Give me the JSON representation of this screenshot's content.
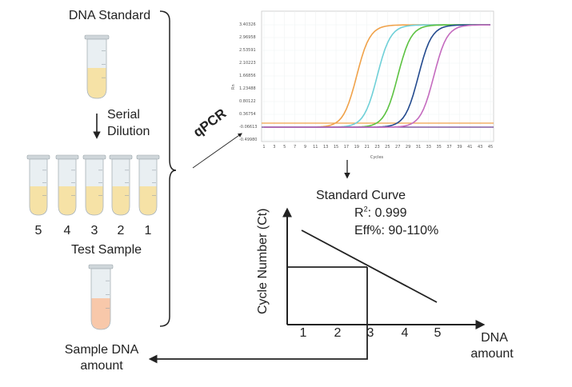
{
  "left": {
    "standard_label": "DNA Standard",
    "dilution_label_1": "Serial",
    "dilution_label_2": "Dilution",
    "dilution_numbers": [
      "5",
      "4",
      "3",
      "2",
      "1"
    ],
    "test_label": "Test Sample",
    "result_label_1": "Sample DNA",
    "result_label_2": "amount"
  },
  "qpcr_label": "qPCR",
  "colors": {
    "standard_liquid": "#f6e2a6",
    "sample_liquid": "#f8c8aa",
    "orange": "#f0a24a",
    "cyan": "#6fd0d8",
    "green": "#5cc241",
    "navy": "#234a8e",
    "magenta": "#c46bbf",
    "threshold": "#f0a24a",
    "baseline": "#6a3f8f"
  },
  "amplification_plot": {
    "ylabel": "Rn",
    "xlabel": "Cycles",
    "y_ticks": [
      "3.40326",
      "2.96958",
      "2.53591",
      "2.10223",
      "1.66856",
      "1.23488",
      "0.80122",
      "0.36754",
      "-0.06613",
      "-0.49980"
    ],
    "x_ticks": [
      "1",
      "3",
      "5",
      "7",
      "9",
      "11",
      "13",
      "15",
      "17",
      "19",
      "21",
      "23",
      "25",
      "27",
      "29",
      "31",
      "33",
      "35",
      "37",
      "39",
      "41",
      "43",
      "45"
    ],
    "curve_midpoints": [
      19,
      23,
      27,
      31,
      34
    ],
    "baseline_rn": -0.07,
    "plateau_rn": 3.4
  },
  "standard_curve": {
    "title": "Standard Curve",
    "r2_label": "R",
    "r2_sup": "2",
    "r2_value": ": 0.999",
    "eff": "Eff%: 90-110%",
    "ylabel": "Cycle Number (Ct)",
    "xlabel_1": "DNA",
    "xlabel_2": "amount",
    "x_ticks": [
      "1",
      "2",
      "3",
      "4",
      "5"
    ]
  }
}
